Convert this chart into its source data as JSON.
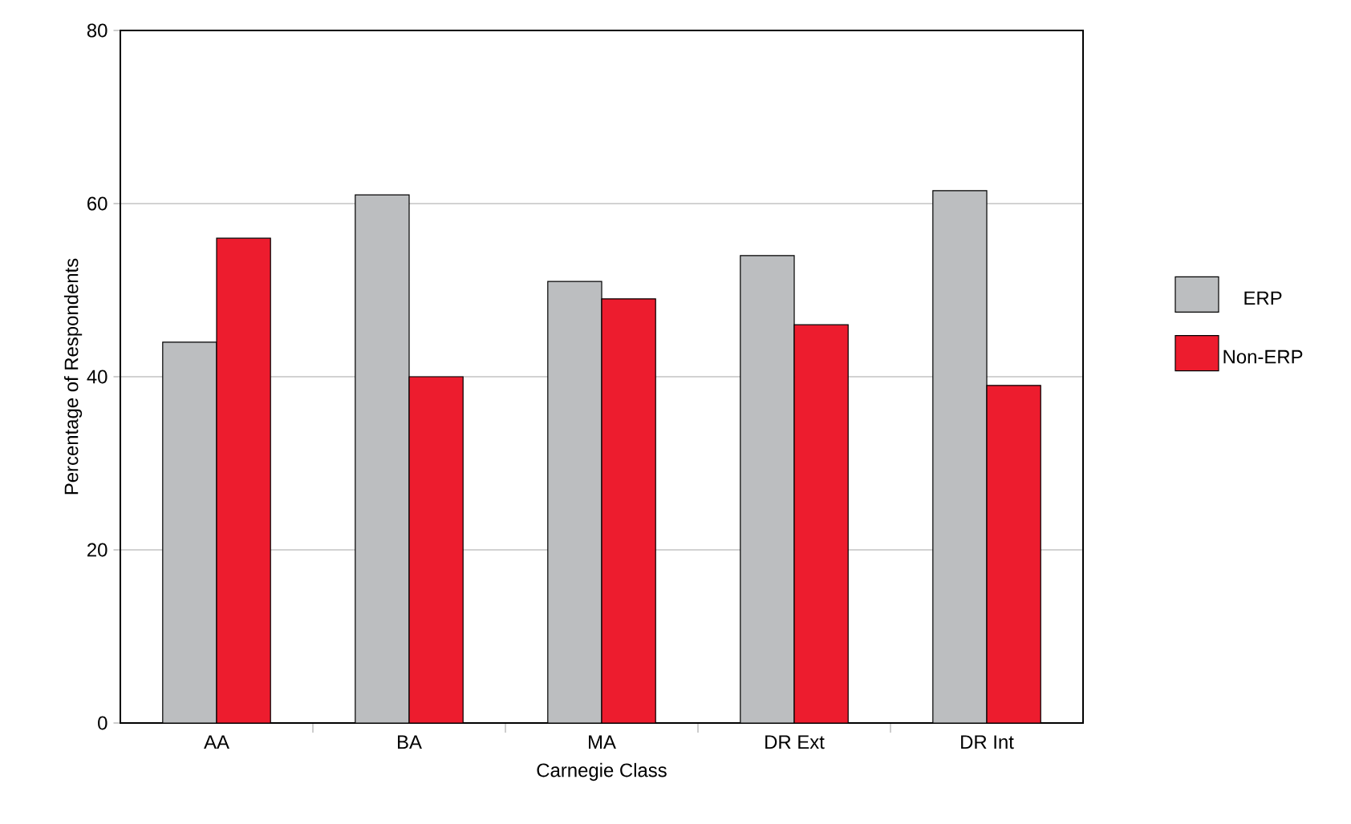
{
  "chart_data": {
    "type": "bar",
    "xlabel": "Carnegie Class",
    "ylabel": "Percentage of Respondents",
    "categories": [
      "AA",
      "BA",
      "MA",
      "DR Ext",
      "DR Int"
    ],
    "series": [
      {
        "name": "ERP",
        "color": "#bcbec0",
        "values": [
          44,
          61,
          51,
          54,
          61.5
        ]
      },
      {
        "name": "Non-ERP",
        "color": "#ed1c2e",
        "values": [
          56,
          40,
          49,
          46,
          39
        ]
      }
    ],
    "ylim": [
      0,
      80
    ],
    "yticks": [
      0,
      20,
      40,
      60,
      80
    ],
    "grid": "y",
    "legend": "right"
  }
}
